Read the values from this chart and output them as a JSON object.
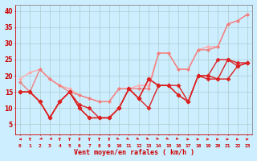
{
  "background_color": "#cceeff",
  "grid_color": "#aacccc",
  "xlabel": "Vent moyen/en rafales ( km/h )",
  "x_labels": [
    "0",
    "1",
    "2",
    "3",
    "4",
    "5",
    "6",
    "7",
    "8",
    "9",
    "10",
    "11",
    "12",
    "13",
    "14",
    "15",
    "16",
    "17",
    "18",
    "19",
    "20",
    "21",
    "22",
    "23"
  ],
  "ylim": [
    2,
    42
  ],
  "yticks": [
    5,
    10,
    15,
    20,
    25,
    30,
    35,
    40
  ],
  "xlim": [
    -0.5,
    23.5
  ],
  "series": [
    {
      "y": [
        19,
        21,
        22,
        19,
        17,
        16,
        14,
        13,
        12,
        12,
        16,
        16,
        17,
        17,
        27,
        27,
        22,
        22,
        28,
        29,
        29,
        36,
        37,
        39
      ],
      "color": "#ffaaaa",
      "linewidth": 1.0,
      "marker": "D",
      "markersize": 2.0
    },
    {
      "y": [
        18,
        15,
        22,
        19,
        17,
        15,
        14,
        13,
        12,
        12,
        16,
        16,
        16,
        16,
        27,
        27,
        22,
        22,
        28,
        28,
        29,
        36,
        37,
        39
      ],
      "color": "#f08080",
      "linewidth": 1.0,
      "marker": "D",
      "markersize": 2.0
    },
    {
      "y": [
        15,
        15,
        12,
        7,
        12,
        15,
        11,
        10,
        7,
        7,
        10,
        16,
        13,
        19,
        17,
        17,
        17,
        12,
        20,
        20,
        25,
        25,
        24,
        24
      ],
      "color": "#dd2222",
      "linewidth": 1.0,
      "marker": "D",
      "markersize": 2.5
    },
    {
      "y": [
        15,
        15,
        12,
        7,
        12,
        15,
        10,
        7,
        7,
        7,
        10,
        16,
        13,
        19,
        17,
        17,
        14,
        12,
        20,
        20,
        19,
        25,
        23,
        24
      ],
      "color": "#dd2222",
      "linewidth": 1.0,
      "marker": "D",
      "markersize": 2.5
    },
    {
      "y": [
        15,
        15,
        12,
        7,
        12,
        15,
        10,
        7,
        7,
        7,
        10,
        16,
        13,
        10,
        17,
        17,
        14,
        12,
        20,
        19,
        19,
        19,
        23,
        24
      ],
      "color": "#dd2222",
      "linewidth": 1.0,
      "marker": "D",
      "markersize": 2.5
    }
  ],
  "arrows": {
    "angles": [
      180,
      90,
      135,
      135,
      90,
      90,
      90,
      90,
      90,
      90,
      45,
      45,
      45,
      45,
      45,
      45,
      45,
      0,
      0,
      0,
      0,
      0,
      0,
      0
    ],
    "color": "#dd2222"
  }
}
